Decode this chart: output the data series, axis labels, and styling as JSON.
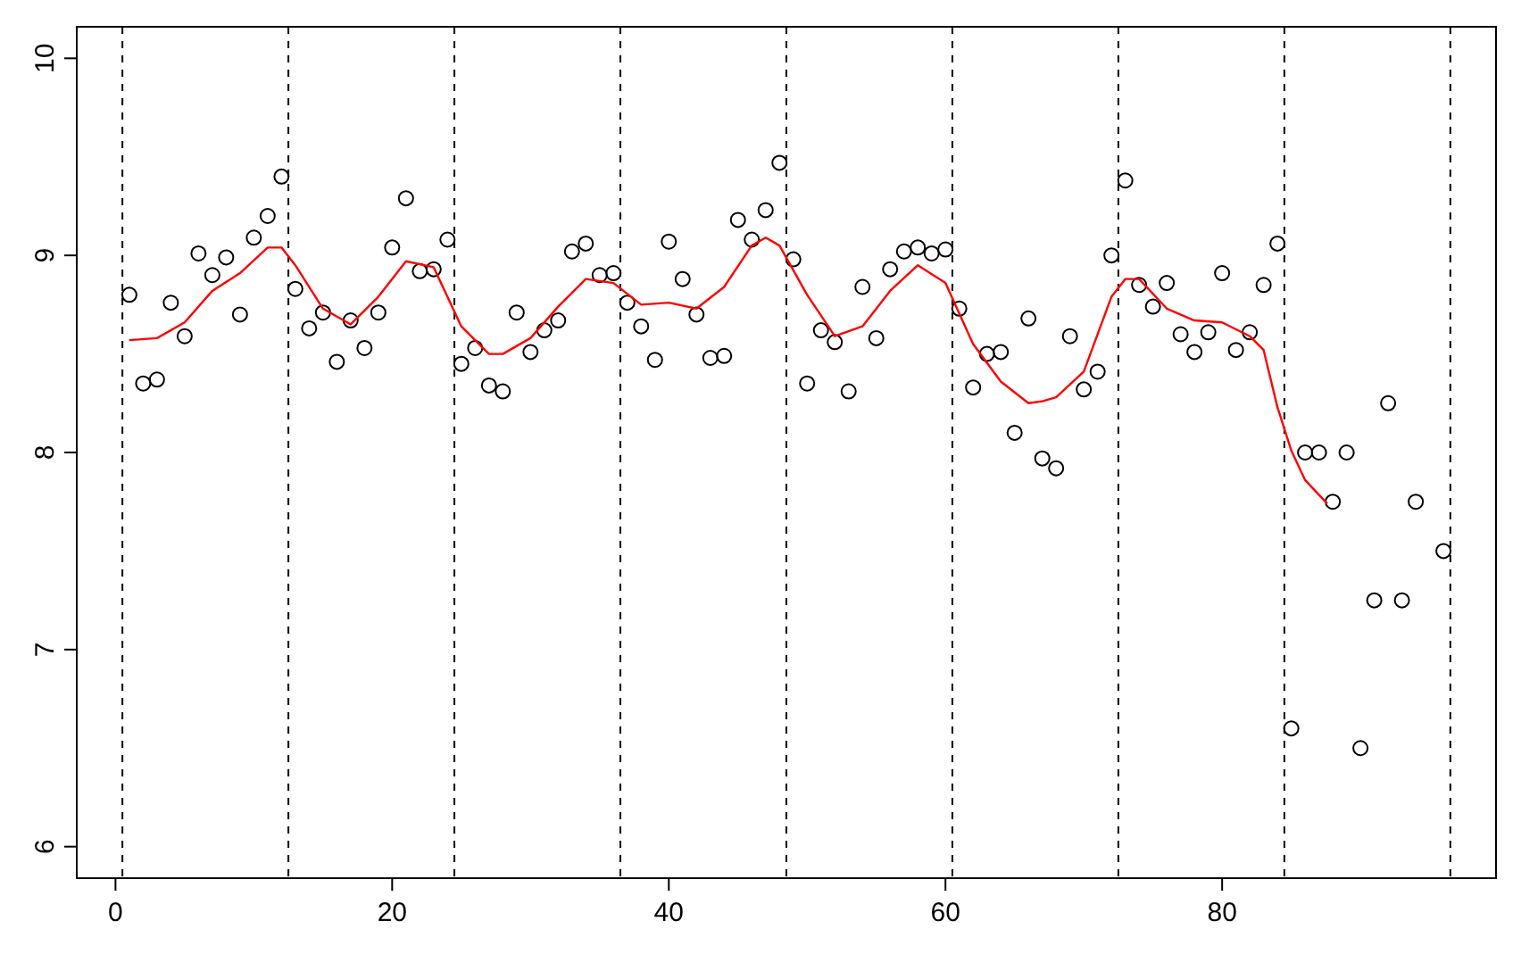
{
  "chart_data": {
    "type": "scatter",
    "xlim": [
      -2.8,
      99.8
    ],
    "ylim": [
      5.84,
      10.16
    ],
    "xticks": [
      0,
      20,
      40,
      60,
      80
    ],
    "yticks": [
      6,
      7,
      8,
      9,
      10
    ],
    "grid": false,
    "series": [
      {
        "marker": "circle",
        "color": "#000000",
        "x": [
          1,
          2,
          3,
          4,
          5,
          6,
          7,
          8,
          9,
          10,
          11,
          12,
          13,
          14,
          15,
          16,
          17,
          18,
          19,
          20,
          21,
          22,
          23,
          24,
          25,
          26,
          27,
          28,
          29,
          30,
          31,
          32,
          33,
          34,
          35,
          36,
          37,
          38,
          39,
          40,
          41,
          42,
          43,
          44,
          45,
          46,
          47,
          48,
          49,
          50,
          51,
          52,
          53,
          54,
          55,
          56,
          57,
          58,
          59,
          60,
          61,
          62,
          63,
          64,
          65,
          66,
          67,
          68,
          69,
          70,
          71,
          72,
          73,
          74,
          75,
          76,
          77,
          78,
          79,
          80,
          81,
          82,
          83,
          84,
          85,
          86,
          87,
          88,
          89,
          90,
          91,
          92,
          93,
          94,
          96
        ],
        "values": [
          8.8,
          8.35,
          8.37,
          8.76,
          8.59,
          9.01,
          8.9,
          8.99,
          8.7,
          9.09,
          9.2,
          9.4,
          8.83,
          8.63,
          8.71,
          8.46,
          8.67,
          8.53,
          8.71,
          9.04,
          9.29,
          8.92,
          8.93,
          9.08,
          8.45,
          8.53,
          8.34,
          8.31,
          8.71,
          8.51,
          8.62,
          8.67,
          9.02,
          9.06,
          8.9,
          8.91,
          8.76,
          8.64,
          8.47,
          9.07,
          8.88,
          8.7,
          8.48,
          8.49,
          9.18,
          9.08,
          9.23,
          9.47,
          8.98,
          8.35,
          8.62,
          8.56,
          8.31,
          8.84,
          8.58,
          8.93,
          9.02,
          9.04,
          9.01,
          9.03,
          8.73,
          8.33,
          8.5,
          8.51,
          8.1,
          8.68,
          7.97,
          7.92,
          8.59,
          8.32,
          8.41,
          9.0,
          9.38,
          8.85,
          8.74,
          8.86,
          8.6,
          8.51,
          8.61,
          8.91,
          8.52,
          8.61,
          8.85,
          9.06,
          6.6,
          8.0,
          8.0,
          7.75,
          8.0,
          6.5,
          7.25,
          8.25,
          7.25,
          7.75,
          7.5
        ]
      },
      {
        "type": "line",
        "line_style": "solid",
        "color": "#ff0000",
        "x": [
          1,
          3,
          5,
          7,
          9,
          11,
          12,
          13,
          15,
          17,
          19,
          21,
          23,
          25,
          27,
          28,
          30,
          32,
          34,
          36,
          38,
          40,
          42,
          44,
          46,
          47,
          48,
          50,
          52,
          54,
          56,
          58,
          60,
          62,
          64,
          66,
          67,
          68,
          70,
          72,
          73,
          74,
          76,
          78,
          80,
          82,
          83,
          84,
          85,
          86,
          87.6
        ],
        "values": [
          8.57,
          8.58,
          8.66,
          8.82,
          8.91,
          9.04,
          9.04,
          8.95,
          8.73,
          8.65,
          8.79,
          8.97,
          8.94,
          8.64,
          8.5,
          8.5,
          8.58,
          8.74,
          8.88,
          8.86,
          8.75,
          8.76,
          8.73,
          8.84,
          9.05,
          9.09,
          9.05,
          8.8,
          8.59,
          8.64,
          8.82,
          8.95,
          8.86,
          8.55,
          8.36,
          8.25,
          8.26,
          8.28,
          8.41,
          8.79,
          8.88,
          8.88,
          8.73,
          8.67,
          8.66,
          8.59,
          8.52,
          8.23,
          8.01,
          7.86,
          7.74
        ]
      }
    ],
    "ref_lines": [
      {
        "axis": "x",
        "value": 0.5,
        "color": "#000000",
        "line_style": "dashed"
      },
      {
        "axis": "x",
        "value": 12.5,
        "color": "#000000",
        "line_style": "dashed"
      },
      {
        "axis": "x",
        "value": 24.5,
        "color": "#000000",
        "line_style": "dashed"
      },
      {
        "axis": "x",
        "value": 36.5,
        "color": "#000000",
        "line_style": "dashed"
      },
      {
        "axis": "x",
        "value": 48.5,
        "color": "#000000",
        "line_style": "dashed"
      },
      {
        "axis": "x",
        "value": 60.5,
        "color": "#000000",
        "line_style": "dashed"
      },
      {
        "axis": "x",
        "value": 72.5,
        "color": "#000000",
        "line_style": "dashed"
      },
      {
        "axis": "x",
        "value": 84.5,
        "color": "#000000",
        "line_style": "dashed"
      },
      {
        "axis": "x",
        "value": 96.5,
        "color": "#000000",
        "line_style": "dashed"
      }
    ]
  }
}
